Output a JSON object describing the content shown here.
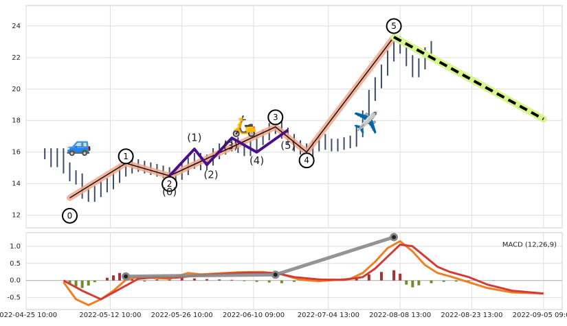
{
  "chart_data": [
    {
      "type": "line",
      "subtype": "candlestick-with-elliott-wave-annotations",
      "title": "",
      "xlabel": "",
      "ylabel": "",
      "ylim": [
        11.2,
        25.3
      ],
      "yticks": [
        12,
        14,
        16,
        18,
        20,
        22,
        24
      ],
      "grid": true,
      "x_tick_labels": [
        "2022-04-25 10:00",
        "2022-05-12 10:00",
        "2022-05-26 10:00",
        "2022-06-10 09:00",
        "2022-07-04 13:00",
        "2022-08-08 13:00",
        "2022-08-23 13:00",
        "2022-09-05 09:00"
      ],
      "price_series": {
        "name": "",
        "color": "#3b4a66",
        "points": [
          [
            0,
            15.9
          ],
          [
            1,
            15.4
          ],
          [
            2,
            15.9
          ],
          [
            3,
            15.0
          ],
          [
            4,
            14.5
          ],
          [
            5,
            14.3
          ],
          [
            6,
            13.4
          ],
          [
            7,
            13.2
          ],
          [
            8,
            13.5
          ],
          [
            9,
            13.8
          ],
          [
            10,
            14.0
          ],
          [
            11,
            14.4
          ],
          [
            12,
            14.8
          ],
          [
            13,
            15.0
          ],
          [
            14,
            15.2
          ],
          [
            15,
            15.1
          ],
          [
            16,
            15.0
          ],
          [
            17,
            14.9
          ],
          [
            18,
            14.8
          ],
          [
            19,
            14.7
          ],
          [
            20,
            14.5
          ],
          [
            21,
            14.6
          ],
          [
            22,
            14.9
          ],
          [
            23,
            15.3
          ],
          [
            24,
            15.6
          ],
          [
            25,
            15.2
          ],
          [
            26,
            15.5
          ],
          [
            27,
            15.9
          ],
          [
            28,
            16.2
          ],
          [
            29,
            16.4
          ],
          [
            30,
            16.6
          ],
          [
            31,
            16.3
          ],
          [
            32,
            16.1
          ],
          [
            33,
            16.4
          ],
          [
            34,
            16.8
          ],
          [
            35,
            17.1
          ],
          [
            36,
            17.5
          ],
          [
            37,
            17.7
          ],
          [
            38,
            17.2
          ],
          [
            39,
            16.8
          ],
          [
            40,
            16.4
          ],
          [
            41,
            16.2
          ],
          [
            42,
            16.0
          ],
          [
            43,
            16.4
          ],
          [
            44,
            16.8
          ],
          [
            45,
            16.5
          ],
          [
            46,
            16.4
          ],
          [
            47,
            16.5
          ],
          [
            48,
            16.6
          ],
          [
            49,
            16.7
          ],
          [
            50,
            17.3
          ],
          [
            51,
            18.3
          ],
          [
            52,
            19.6
          ],
          [
            53,
            20.4
          ],
          [
            54,
            21.2
          ],
          [
            55,
            22.1
          ],
          [
            56,
            23.0
          ],
          [
            57,
            22.6
          ],
          [
            58,
            21.8
          ],
          [
            59,
            21.1
          ],
          [
            60,
            21.6
          ],
          [
            61,
            22.3
          ],
          [
            62,
            22.7
          ]
        ]
      },
      "wave_primary": {
        "labels": [
          "0",
          "1",
          "2",
          "3",
          "4",
          "5"
        ],
        "points": [
          [
            4,
            13.1
          ],
          [
            13,
            15.3
          ],
          [
            20,
            14.5
          ],
          [
            37,
            17.6
          ],
          [
            42,
            16.0
          ],
          [
            56,
            23.3
          ]
        ]
      },
      "wave_secondary": {
        "labels": [
          "(0)",
          "(1)",
          "(2)",
          "(3)",
          "(4)",
          "(5)"
        ],
        "points": [
          [
            20,
            14.5
          ],
          [
            24,
            16.2
          ],
          [
            26,
            15.2
          ],
          [
            30,
            16.9
          ],
          [
            34,
            16.0
          ],
          [
            39,
            17.4
          ]
        ]
      },
      "projection": {
        "points": [
          [
            56,
            23.3
          ],
          [
            80,
            18.1
          ]
        ],
        "color": "#000000",
        "halo_color": "#d6f58a"
      },
      "annotations": [
        "🚙",
        "🛵",
        "✈️"
      ]
    },
    {
      "type": "line",
      "subtype": "macd",
      "title": "MACD (12,26,9)",
      "ylim": [
        -0.85,
        1.4
      ],
      "yticks": [
        -0.5,
        0.0,
        0.5,
        1.0
      ],
      "grid": true,
      "series": [
        {
          "name": "",
          "color": "#f07f1f",
          "points": [
            [
              3,
              -0.05
            ],
            [
              5,
              -0.55
            ],
            [
              7,
              -0.72
            ],
            [
              9,
              -0.55
            ],
            [
              11,
              -0.3
            ],
            [
              13,
              0.02
            ],
            [
              15,
              0.1
            ],
            [
              17,
              0.08
            ],
            [
              20,
              0.05
            ],
            [
              23,
              0.22
            ],
            [
              25,
              0.18
            ],
            [
              28,
              0.21
            ],
            [
              31,
              0.24
            ],
            [
              35,
              0.25
            ],
            [
              38,
              0.18
            ],
            [
              41,
              0.02
            ],
            [
              44,
              -0.02
            ],
            [
              47,
              0.02
            ],
            [
              49,
              0.05
            ],
            [
              51,
              0.22
            ],
            [
              53,
              0.55
            ],
            [
              55,
              0.95
            ],
            [
              57,
              1.15
            ],
            [
              59,
              0.85
            ],
            [
              61,
              0.45
            ],
            [
              63,
              0.22
            ],
            [
              65,
              0.12
            ],
            [
              68,
              -0.05
            ],
            [
              71,
              -0.22
            ],
            [
              75,
              -0.35
            ],
            [
              80,
              -0.38
            ]
          ]
        },
        {
          "name": "",
          "color": "#d33b36",
          "points": [
            [
              3,
              0.0
            ],
            [
              6,
              -0.3
            ],
            [
              9,
              -0.55
            ],
            [
              12,
              -0.25
            ],
            [
              15,
              0.05
            ],
            [
              18,
              0.1
            ],
            [
              21,
              0.08
            ],
            [
              25,
              0.16
            ],
            [
              29,
              0.2
            ],
            [
              33,
              0.23
            ],
            [
              37,
              0.22
            ],
            [
              40,
              0.1
            ],
            [
              44,
              0.03
            ],
            [
              48,
              0.02
            ],
            [
              51,
              0.1
            ],
            [
              53,
              0.35
            ],
            [
              55,
              0.7
            ],
            [
              57,
              1.05
            ],
            [
              59,
              1.0
            ],
            [
              61,
              0.7
            ],
            [
              63,
              0.4
            ],
            [
              65,
              0.25
            ],
            [
              68,
              0.1
            ],
            [
              71,
              -0.12
            ],
            [
              75,
              -0.3
            ],
            [
              80,
              -0.38
            ]
          ]
        }
      ],
      "histogram": [
        [
          4,
          -0.12
        ],
        [
          5,
          -0.18
        ],
        [
          6,
          -0.22
        ],
        [
          7,
          -0.15
        ],
        [
          8,
          -0.05
        ],
        [
          10,
          0.08
        ],
        [
          11,
          0.15
        ],
        [
          12,
          0.22
        ],
        [
          13,
          0.18
        ],
        [
          14,
          0.05
        ],
        [
          16,
          -0.03
        ],
        [
          18,
          0.03
        ],
        [
          20,
          0.05
        ],
        [
          22,
          0.08
        ],
        [
          24,
          0.06
        ],
        [
          26,
          0.04
        ],
        [
          28,
          0.03
        ],
        [
          30,
          0.02
        ],
        [
          32,
          -0.02
        ],
        [
          34,
          -0.04
        ],
        [
          36,
          -0.06
        ],
        [
          38,
          -0.08
        ],
        [
          40,
          -0.04
        ],
        [
          42,
          0.04
        ],
        [
          44,
          0.06
        ],
        [
          46,
          0.04
        ],
        [
          48,
          0.05
        ],
        [
          50,
          0.1
        ],
        [
          52,
          0.18
        ],
        [
          54,
          0.25
        ],
        [
          56,
          0.3
        ],
        [
          57,
          0.2
        ],
        [
          58,
          -0.12
        ],
        [
          59,
          -0.2
        ],
        [
          60,
          -0.14
        ],
        [
          62,
          -0.08
        ],
        [
          64,
          -0.04
        ],
        [
          66,
          -0.03
        ],
        [
          68,
          -0.02
        ],
        [
          72,
          -0.01
        ]
      ],
      "trend_line": {
        "points": [
          [
            13,
            0.12
          ],
          [
            37,
            0.17
          ],
          [
            56,
            1.27
          ]
        ],
        "color": "#888888"
      },
      "hist_up_color": "#a63232",
      "hist_down_color": "#6f8c2b"
    }
  ]
}
